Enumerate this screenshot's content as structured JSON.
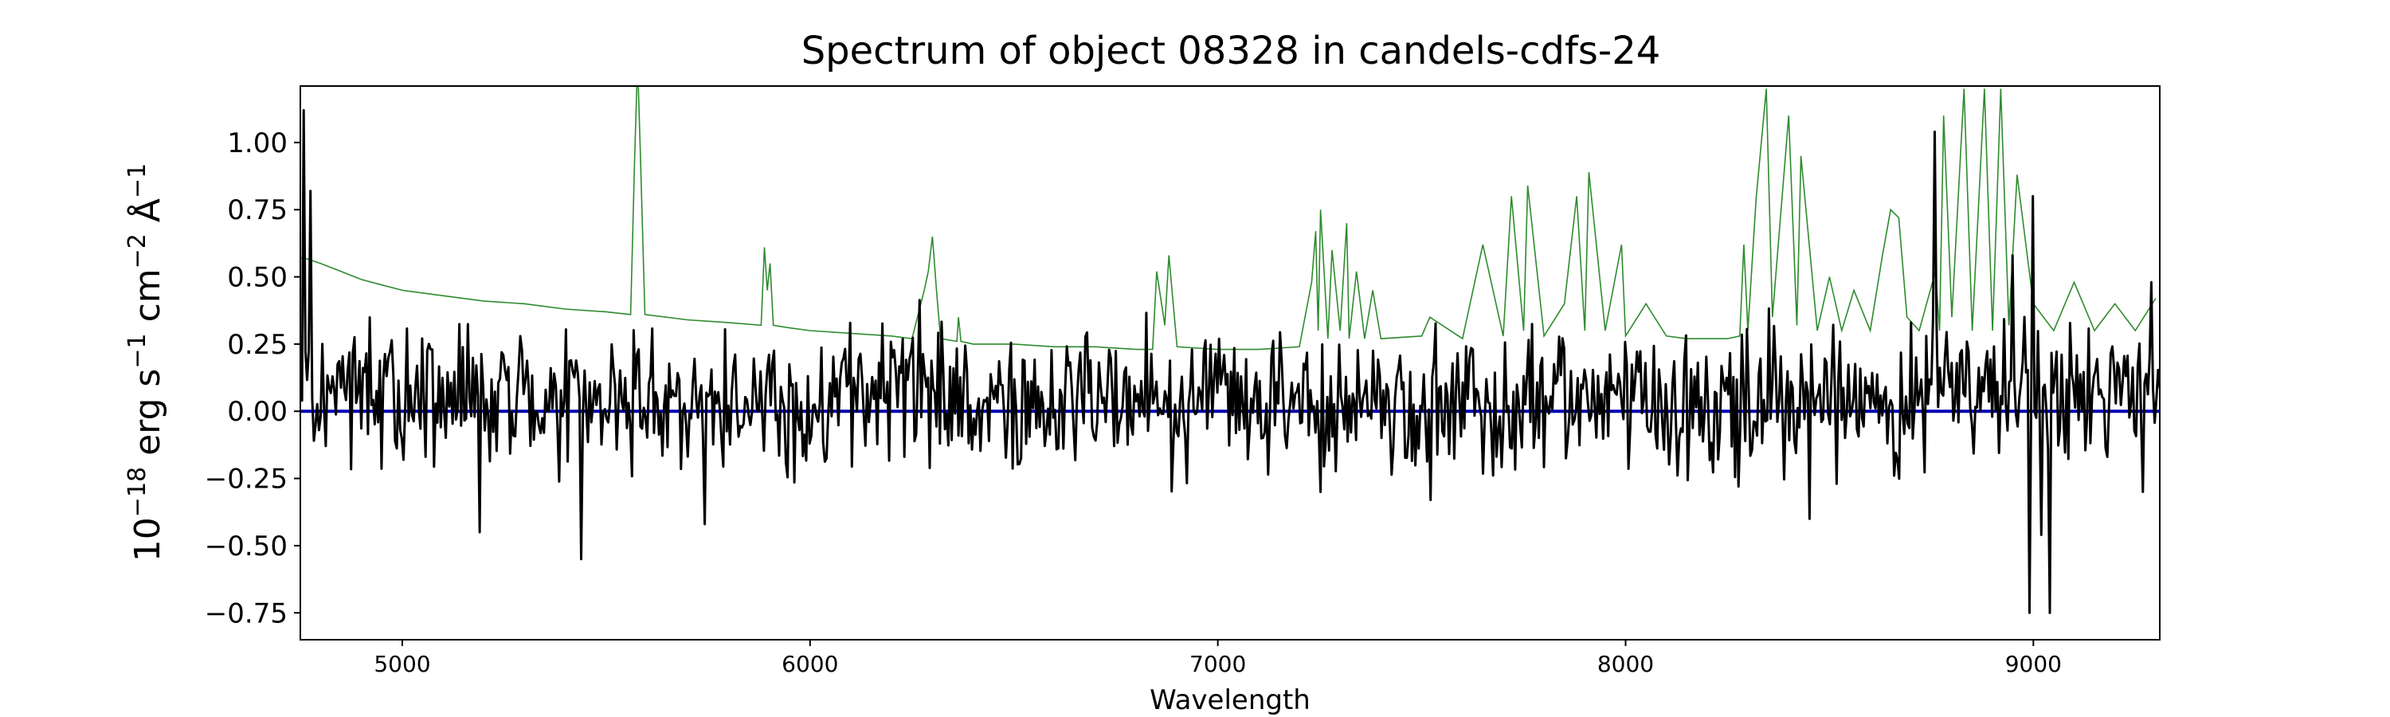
{
  "chart_data": {
    "type": "line",
    "title": "Spectrum of object 08328 in candels-cdfs-24",
    "xlabel": "Wavelength",
    "ylabel": {
      "parts": [
        "10",
        "−18",
        " erg s",
        "−1",
        " cm",
        "−2",
        " Å",
        "−1"
      ]
    },
    "xlim": [
      4750,
      9310
    ],
    "ylim": [
      -0.85,
      1.21
    ],
    "xticks": [
      5000,
      6000,
      7000,
      8000,
      9000
    ],
    "xtick_labels": [
      "5000",
      "6000",
      "7000",
      "8000",
      "9000"
    ],
    "yticks": [
      -0.75,
      -0.5,
      -0.25,
      0.0,
      0.25,
      0.5,
      0.75,
      1.0
    ],
    "ytick_labels": [
      "−0.75",
      "−0.50",
      "−0.25",
      "0.00",
      "0.25",
      "0.50",
      "0.75",
      "1.00"
    ],
    "grid": false,
    "colors": {
      "flux": "#000000",
      "noise": "#2e8b2e",
      "zero": "#0000b4"
    },
    "series": [
      {
        "key": "noise",
        "x": [
          4750,
          4760,
          4800,
          4850,
          4900,
          4950,
          5000,
          5100,
          5200,
          5300,
          5400,
          5500,
          5560,
          5570,
          5577,
          5584,
          5595,
          5700,
          5800,
          5880,
          5888,
          5895,
          5902,
          5910,
          5950,
          6000,
          6100,
          6200,
          6250,
          6280,
          6290,
          6300,
          6310,
          6320,
          6360,
          6364,
          6370,
          6400,
          6500,
          6600,
          6700,
          6800,
          6840,
          6850,
          6870,
          6880,
          6900,
          7000,
          7100,
          7200,
          7230,
          7240,
          7246,
          7252,
          7270,
          7280,
          7300,
          7316,
          7322,
          7340,
          7360,
          7380,
          7400,
          7500,
          7520,
          7600,
          7650,
          7700,
          7720,
          7750,
          7760,
          7800,
          7850,
          7880,
          7900,
          7910,
          7950,
          7990,
          8000,
          8050,
          8100,
          8150,
          8200,
          8250,
          8280,
          8290,
          8300,
          8320,
          8345,
          8360,
          8400,
          8420,
          8430,
          8470,
          8500,
          8530,
          8560,
          8600,
          8630,
          8650,
          8670,
          8690,
          8720,
          8760,
          8770,
          8780,
          8800,
          8830,
          8850,
          8880,
          8900,
          8920,
          8940,
          8960,
          9000,
          9050,
          9100,
          9150,
          9200,
          9250,
          9300
        ],
        "y": [
          0.57,
          0.57,
          0.55,
          0.52,
          0.49,
          0.47,
          0.45,
          0.43,
          0.41,
          0.4,
          0.38,
          0.37,
          0.36,
          0.95,
          1.3,
          0.95,
          0.36,
          0.34,
          0.33,
          0.32,
          0.61,
          0.45,
          0.55,
          0.32,
          0.31,
          0.3,
          0.29,
          0.28,
          0.27,
          0.45,
          0.52,
          0.65,
          0.45,
          0.27,
          0.26,
          0.35,
          0.26,
          0.25,
          0.25,
          0.24,
          0.24,
          0.23,
          0.23,
          0.52,
          0.32,
          0.58,
          0.24,
          0.23,
          0.23,
          0.24,
          0.48,
          0.67,
          0.3,
          0.75,
          0.27,
          0.6,
          0.3,
          0.7,
          0.27,
          0.52,
          0.27,
          0.45,
          0.27,
          0.28,
          0.35,
          0.27,
          0.62,
          0.28,
          0.8,
          0.3,
          0.84,
          0.28,
          0.4,
          0.8,
          0.3,
          0.89,
          0.3,
          0.62,
          0.28,
          0.4,
          0.28,
          0.27,
          0.27,
          0.27,
          0.28,
          0.62,
          0.3,
          0.79,
          1.2,
          0.35,
          1.1,
          0.32,
          0.95,
          0.3,
          0.5,
          0.3,
          0.45,
          0.3,
          0.58,
          0.75,
          0.72,
          0.35,
          0.3,
          0.52,
          0.3,
          1.1,
          0.35,
          1.2,
          0.3,
          1.2,
          0.3,
          1.2,
          0.32,
          0.88,
          0.4,
          0.3,
          0.48,
          0.3,
          0.4,
          0.3,
          0.42
        ]
      },
      {
        "key": "flux",
        "seed": 328,
        "n": 1100,
        "noise_amplitude": 0.2,
        "note_free": true
      }
    ],
    "flux_features": [
      {
        "x": 4760,
        "y": 1.12
      },
      {
        "x": 4775,
        "y": 0.82
      },
      {
        "x": 5440,
        "y": -0.55
      },
      {
        "x": 5190,
        "y": -0.45
      },
      {
        "x": 5740,
        "y": -0.42
      },
      {
        "x": 7250,
        "y": -0.3
      },
      {
        "x": 7520,
        "y": -0.33
      },
      {
        "x": 8450,
        "y": -0.4
      },
      {
        "x": 8760,
        "y": 1.04
      },
      {
        "x": 8950,
        "y": 0.58
      },
      {
        "x": 9000,
        "y": 0.8
      },
      {
        "x": 8990,
        "y": -0.75
      },
      {
        "x": 9040,
        "y": -0.75
      },
      {
        "x": 9020,
        "y": -0.46
      },
      {
        "x": 9290,
        "y": 0.48
      },
      {
        "x": 9270,
        "y": -0.3
      }
    ],
    "zero_line": 0.0
  }
}
